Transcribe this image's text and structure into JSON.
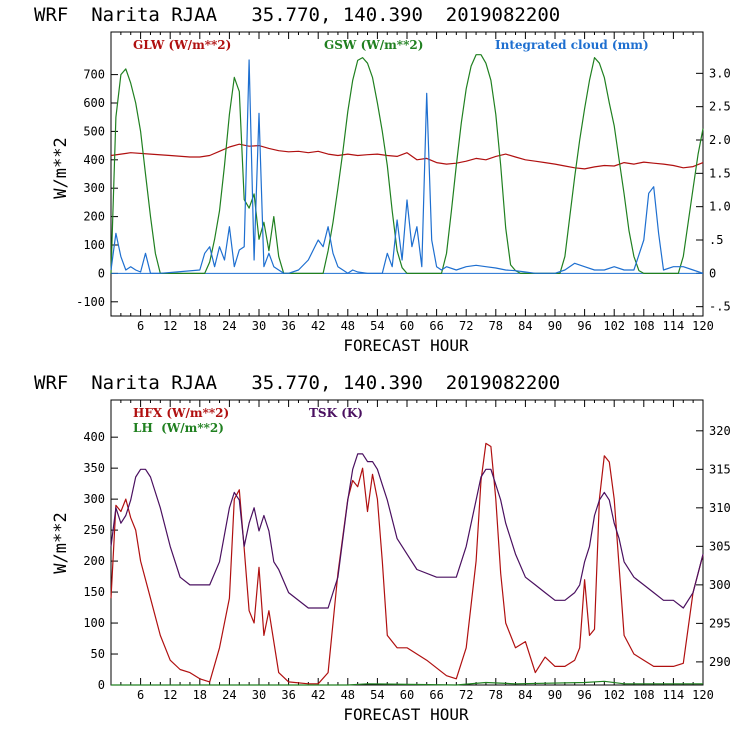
{
  "chart_data": [
    {
      "type": "line",
      "header": "WRF  Narita RJAA   35.770, 140.390  2019082200",
      "xlabel": "FORECAST HOUR",
      "ylabel": "W/m**2",
      "xlim": [
        0,
        120
      ],
      "x_ticks": [
        6,
        12,
        18,
        24,
        30,
        36,
        42,
        48,
        54,
        60,
        66,
        72,
        78,
        84,
        90,
        96,
        102,
        108,
        114,
        120
      ],
      "ylim": [
        -150,
        850
      ],
      "y_ticks": [
        -100,
        0,
        100,
        200,
        300,
        400,
        500,
        600,
        700
      ],
      "ylim_right": [
        -0.64,
        3.62
      ],
      "y_ticks_right": [
        -0.5,
        0,
        0.5,
        1.0,
        1.5,
        2.0,
        2.5,
        3.0
      ],
      "y_tick_labels_right": [
        "-.5",
        "0",
        ".5",
        "1.0",
        "1.5",
        "2.0",
        "2.5",
        "3.0"
      ],
      "series": [
        {
          "name": "GLW (W/m**2)",
          "color": "#b01010",
          "axis": "left",
          "x": [
            0,
            2,
            4,
            8,
            12,
            16,
            18,
            20,
            22,
            24,
            26,
            28,
            30,
            32,
            34,
            36,
            38,
            40,
            42,
            44,
            46,
            48,
            50,
            52,
            54,
            56,
            58,
            60,
            62,
            64,
            66,
            68,
            70,
            72,
            74,
            76,
            78,
            80,
            82,
            84,
            86,
            88,
            90,
            92,
            94,
            96,
            98,
            100,
            102,
            104,
            106,
            108,
            110,
            112,
            114,
            116,
            118,
            120
          ],
          "y": [
            415,
            420,
            425,
            420,
            415,
            410,
            410,
            415,
            430,
            445,
            455,
            448,
            450,
            440,
            432,
            428,
            430,
            425,
            430,
            420,
            415,
            420,
            415,
            418,
            420,
            415,
            412,
            425,
            400,
            405,
            390,
            385,
            388,
            395,
            405,
            400,
            412,
            420,
            410,
            400,
            395,
            390,
            385,
            378,
            372,
            368,
            375,
            380,
            378,
            390,
            385,
            392,
            388,
            385,
            380,
            372,
            376,
            390
          ]
        },
        {
          "name": "GSW (W/m**2)",
          "color": "#208020",
          "axis": "left",
          "x": [
            0,
            1,
            2,
            3,
            4,
            5,
            6,
            7,
            8,
            9,
            10,
            11,
            12,
            18,
            19,
            20,
            21,
            22,
            23,
            24,
            25,
            26,
            27,
            28,
            29,
            30,
            31,
            32,
            33,
            34,
            35,
            36,
            42,
            43,
            44,
            45,
            46,
            47,
            48,
            49,
            50,
            51,
            52,
            53,
            54,
            55,
            56,
            57,
            58,
            59,
            60,
            66,
            67,
            68,
            69,
            70,
            71,
            72,
            73,
            74,
            75,
            76,
            77,
            78,
            79,
            80,
            81,
            82,
            83,
            84,
            90,
            91,
            92,
            93,
            94,
            95,
            96,
            97,
            98,
            99,
            100,
            101,
            102,
            103,
            104,
            105,
            106,
            107,
            108,
            114,
            115,
            116,
            117,
            118,
            119,
            120
          ],
          "y": [
            0,
            550,
            700,
            720,
            670,
            600,
            500,
            350,
            200,
            70,
            0,
            0,
            0,
            0,
            0,
            40,
            120,
            220,
            380,
            560,
            690,
            640,
            260,
            230,
            280,
            120,
            180,
            80,
            200,
            60,
            0,
            0,
            0,
            0,
            80,
            180,
            300,
            430,
            570,
            680,
            750,
            760,
            740,
            690,
            600,
            500,
            380,
            220,
            80,
            20,
            0,
            0,
            0,
            70,
            220,
            380,
            530,
            650,
            730,
            770,
            770,
            740,
            680,
            560,
            380,
            160,
            30,
            10,
            0,
            0,
            0,
            0,
            60,
            200,
            340,
            470,
            580,
            680,
            760,
            740,
            690,
            600,
            520,
            400,
            280,
            150,
            60,
            10,
            0,
            0,
            0,
            60,
            180,
            300,
            420,
            510
          ]
        },
        {
          "name": "Integrated cloud (mm)",
          "color": "#1e6fd0",
          "axis": "right",
          "x": [
            0,
            1,
            2,
            3,
            4,
            5,
            6,
            7,
            8,
            10,
            18,
            19,
            20,
            21,
            22,
            23,
            24,
            25,
            26,
            27,
            28,
            29,
            30,
            31,
            32,
            33,
            34,
            35,
            36,
            38,
            40,
            42,
            43,
            44,
            45,
            46,
            47,
            48,
            49,
            50,
            52,
            55,
            56,
            57,
            58,
            59,
            60,
            61,
            62,
            63,
            64,
            65,
            66,
            67,
            68,
            70,
            72,
            74,
            76,
            78,
            80,
            82,
            84,
            86,
            88,
            90,
            92,
            94,
            96,
            98,
            100,
            102,
            104,
            106,
            108,
            109,
            110,
            111,
            112,
            114,
            116,
            118,
            120
          ],
          "y": [
            0.05,
            0.6,
            0.25,
            0.05,
            0.1,
            0.05,
            0.02,
            0.3,
            0.0,
            0.0,
            0.05,
            0.3,
            0.4,
            0.1,
            0.4,
            0.2,
            0.7,
            0.1,
            0.35,
            0.4,
            3.2,
            0.2,
            2.4,
            0.1,
            0.3,
            0.1,
            0.05,
            0.0,
            0.0,
            0.05,
            0.2,
            0.5,
            0.4,
            0.7,
            0.3,
            0.1,
            0.05,
            0.0,
            0.05,
            0.02,
            0.0,
            0.0,
            0.3,
            0.1,
            0.8,
            0.2,
            1.1,
            0.4,
            0.7,
            0.1,
            2.7,
            0.5,
            0.1,
            0.05,
            0.1,
            0.05,
            0.1,
            0.12,
            0.1,
            0.08,
            0.05,
            0.04,
            0.02,
            0.0,
            0.0,
            0.0,
            0.05,
            0.15,
            0.1,
            0.05,
            0.05,
            0.1,
            0.05,
            0.05,
            0.5,
            1.2,
            1.3,
            0.6,
            0.05,
            0.1,
            0.1,
            0.05,
            0.0
          ]
        }
      ]
    },
    {
      "type": "line",
      "header": "WRF  Narita RJAA   35.770, 140.390  2019082200",
      "xlabel": "FORECAST HOUR",
      "ylabel": "W/m**2",
      "xlim": [
        0,
        120
      ],
      "x_ticks": [
        6,
        12,
        18,
        24,
        30,
        36,
        42,
        48,
        54,
        60,
        66,
        72,
        78,
        84,
        90,
        96,
        102,
        108,
        114,
        120
      ],
      "ylim": [
        0,
        460
      ],
      "y_ticks": [
        0,
        50,
        100,
        150,
        200,
        250,
        300,
        350,
        400
      ],
      "ylim_right": [
        287,
        324
      ],
      "y_ticks_right": [
        290,
        295,
        300,
        305,
        310,
        315,
        320
      ],
      "y_tick_labels_right": [
        "290",
        "295",
        "300",
        "305",
        "310",
        "315",
        "320"
      ],
      "series": [
        {
          "name": "HFX (W/m**2)",
          "color": "#b01010",
          "axis": "left",
          "x": [
            0,
            1,
            2,
            3,
            4,
            5,
            6,
            8,
            10,
            12,
            14,
            16,
            18,
            20,
            22,
            24,
            25,
            26,
            27,
            28,
            29,
            30,
            31,
            32,
            34,
            36,
            40,
            42,
            44,
            46,
            48,
            49,
            50,
            51,
            52,
            53,
            54,
            55,
            56,
            58,
            60,
            64,
            68,
            70,
            72,
            74,
            75,
            76,
            77,
            78,
            79,
            80,
            82,
            84,
            86,
            88,
            90,
            92,
            94,
            95,
            96,
            97,
            98,
            99,
            100,
            101,
            102,
            104,
            106,
            108,
            110,
            112,
            114,
            116,
            118,
            120
          ],
          "y": [
            140,
            290,
            280,
            300,
            270,
            250,
            200,
            140,
            80,
            40,
            25,
            20,
            10,
            5,
            60,
            140,
            300,
            315,
            220,
            120,
            100,
            190,
            80,
            120,
            20,
            5,
            2,
            2,
            20,
            180,
            300,
            330,
            320,
            350,
            280,
            340,
            300,
            200,
            80,
            60,
            60,
            40,
            15,
            10,
            60,
            200,
            330,
            390,
            385,
            300,
            180,
            100,
            60,
            70,
            20,
            45,
            30,
            30,
            40,
            60,
            170,
            80,
            90,
            300,
            370,
            360,
            300,
            80,
            50,
            40,
            30,
            30,
            30,
            35,
            150,
            210
          ]
        },
        {
          "name": "LH  (W/m**2)",
          "color": "#208020",
          "axis": "left",
          "x": [
            0,
            20,
            48,
            52,
            70,
            76,
            82,
            96,
            100,
            104,
            120
          ],
          "y": [
            0,
            0,
            0,
            2,
            0,
            4,
            2,
            4,
            6,
            2,
            2
          ]
        },
        {
          "name": "TSK (K)",
          "color": "#4a1060",
          "axis": "right",
          "x": [
            0,
            1,
            2,
            3,
            4,
            5,
            6,
            7,
            8,
            10,
            12,
            14,
            16,
            18,
            20,
            22,
            24,
            25,
            26,
            27,
            28,
            29,
            30,
            31,
            32,
            33,
            34,
            36,
            40,
            44,
            46,
            48,
            49,
            50,
            51,
            52,
            53,
            54,
            55,
            56,
            58,
            60,
            62,
            66,
            70,
            72,
            74,
            75,
            76,
            77,
            78,
            79,
            80,
            82,
            84,
            86,
            88,
            90,
            92,
            94,
            95,
            96,
            97,
            98,
            99,
            100,
            101,
            102,
            103,
            104,
            106,
            108,
            110,
            112,
            114,
            116,
            118,
            120
          ],
          "y": [
            305,
            310,
            308,
            309,
            311,
            314,
            315,
            315,
            314,
            310,
            305,
            301,
            300,
            300,
            300,
            303,
            310,
            312,
            311,
            305,
            308,
            310,
            307,
            309,
            307,
            303,
            302,
            299,
            297,
            297,
            301,
            311,
            315,
            317,
            317,
            316,
            316,
            315,
            313,
            311,
            306,
            304,
            302,
            301,
            301,
            305,
            311,
            314,
            315,
            315,
            313,
            311,
            308,
            304,
            301,
            300,
            299,
            298,
            298,
            299,
            300,
            303,
            305,
            309,
            311,
            312,
            311,
            308,
            306,
            303,
            301,
            300,
            299,
            298,
            298,
            297,
            299,
            304
          ]
        }
      ]
    }
  ]
}
